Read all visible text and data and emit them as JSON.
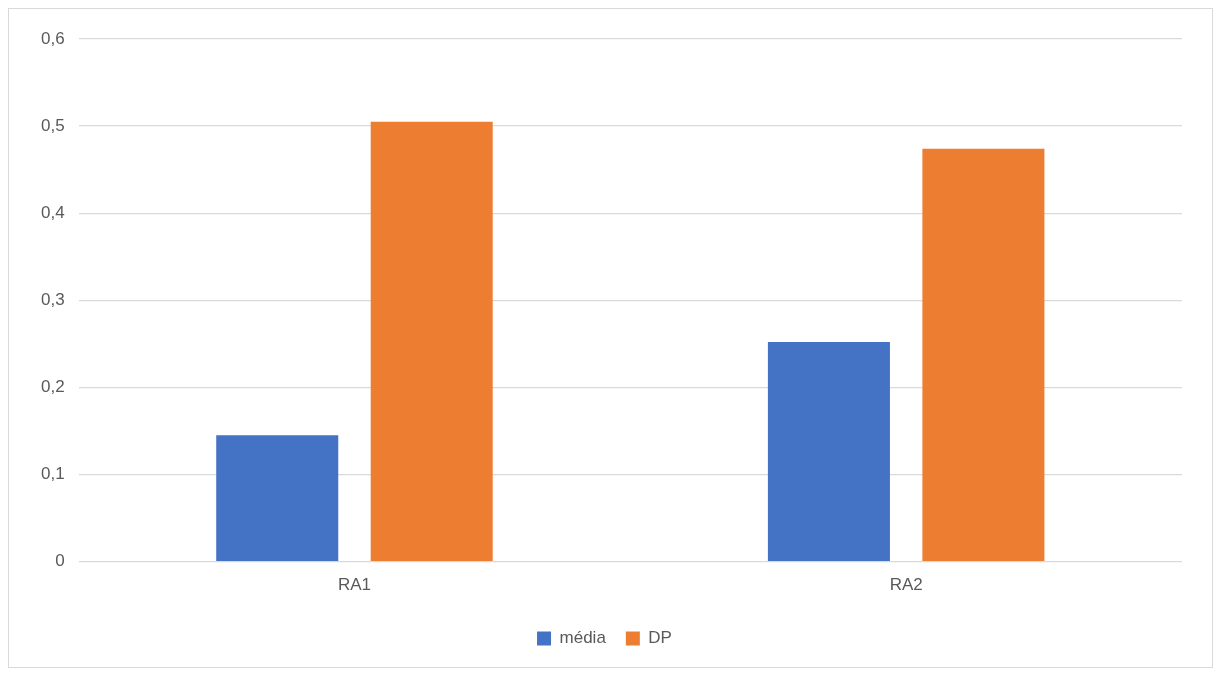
{
  "chart_data": {
    "type": "bar",
    "categories": [
      "RA1",
      "RA2"
    ],
    "series": [
      {
        "name": "média",
        "color": "#4472c4",
        "values": [
          0.145,
          0.252
        ]
      },
      {
        "name": "DP",
        "color": "#ed7d31",
        "values": [
          0.505,
          0.474
        ]
      }
    ],
    "ylim": [
      0,
      0.6
    ],
    "yticks": [
      0,
      {
        "value": 0.1,
        "label": "0,1"
      },
      {
        "value": 0.2,
        "label": "0,2"
      },
      {
        "value": 0.3,
        "label": "0,3"
      },
      {
        "value": 0.4,
        "label": "0,4"
      },
      {
        "value": 0.5,
        "label": "0,5"
      },
      {
        "value": 0.6,
        "label": "0,6"
      }
    ],
    "grid": "y",
    "legend": "bottom"
  }
}
